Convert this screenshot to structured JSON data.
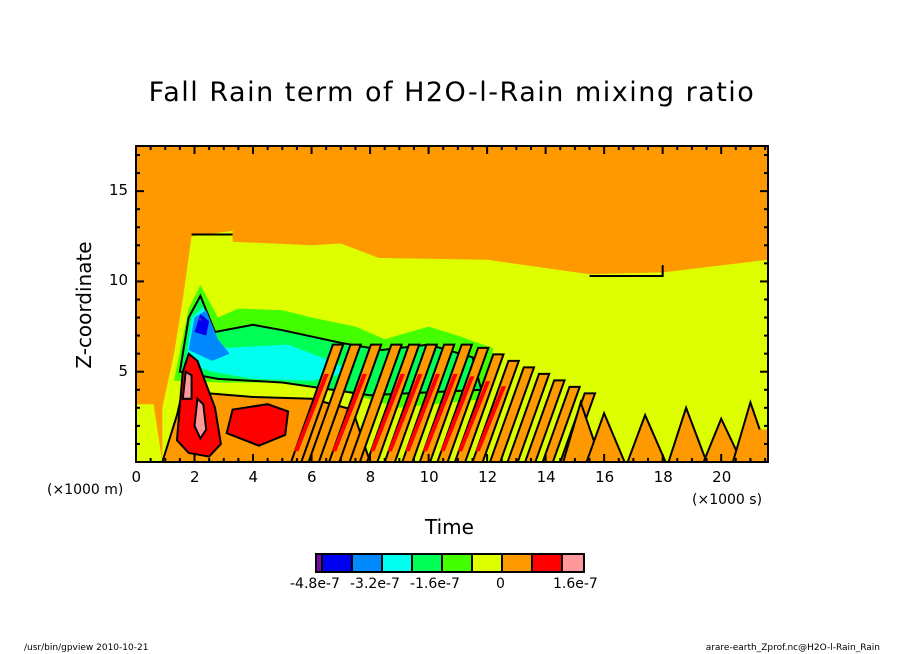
{
  "chart_data": {
    "type": "heatmap",
    "subtype": "filled-contour",
    "title": "Fall Rain term of H2O-l-Rain mixing ratio",
    "xlabel": "Time",
    "ylabel": "Z-coordinate",
    "x_unit": "(×1000 s)",
    "y_unit": "(×1000 m)",
    "xlim": [
      0,
      21.6
    ],
    "ylim": [
      0,
      17.5
    ],
    "x_ticks": [
      "0",
      "2",
      "4",
      "6",
      "8",
      "10",
      "12",
      "14",
      "16",
      "18",
      "20"
    ],
    "y_ticks": [
      "5",
      "10",
      "15"
    ],
    "colorbar": {
      "levels": [
        -5.6e-07,
        -4.8e-07,
        -4e-07,
        -3.2e-07,
        -2.4e-07,
        -1.6e-07,
        -8e-08,
        0,
        8e-08,
        1.6e-07,
        2.4e-07
      ],
      "colors": [
        "#7a0aa8",
        "#0000f0",
        "#0088ff",
        "#00ffee",
        "#00ff55",
        "#44ff00",
        "#ddff00",
        "#ff9900",
        "#ff0000",
        "#ff9999"
      ],
      "tick_labels": [
        "-4.8e-7",
        "-3.2e-7",
        "-1.6e-7",
        "0",
        "1.6e-7"
      ]
    },
    "features": [
      {
        "name": "upper-positive-region",
        "value_class": "0..0.8e-7",
        "z_range": [
          11,
          17.5
        ]
      },
      {
        "name": "negative-core",
        "t_center": 2.2,
        "z_center": 7,
        "min_value": -5e-07
      },
      {
        "name": "positive-core",
        "t_center": 2.3,
        "z_center": 2.5,
        "max_value": 2.4e-07
      },
      {
        "name": "wave-train",
        "t_range": [
          7,
          13
        ],
        "z_range": [
          0,
          7
        ]
      }
    ]
  },
  "footer": {
    "left": "/usr/bin/gpview   2010-10-21",
    "right": "arare-earth_Zprof.nc@H2O-l-Rain_Rain"
  }
}
